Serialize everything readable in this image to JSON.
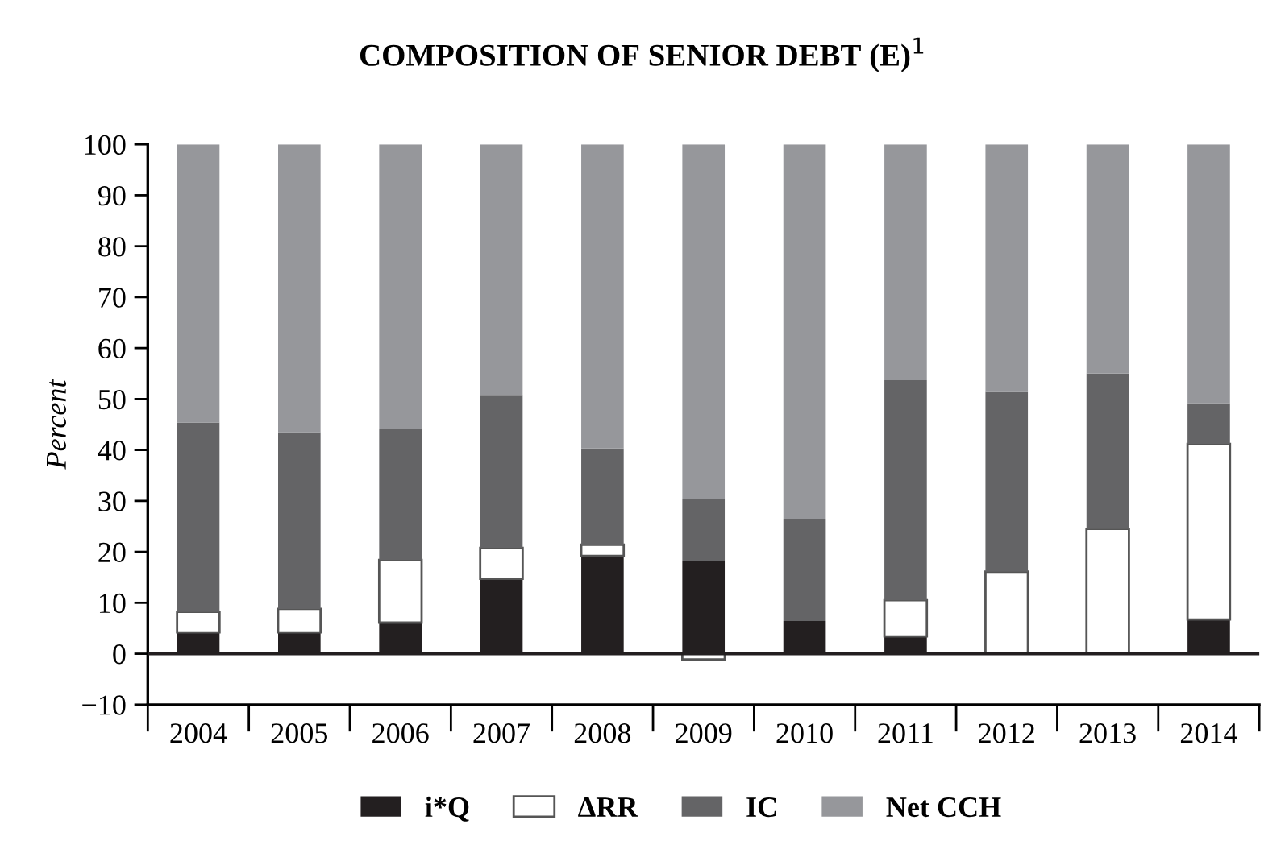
{
  "chart_data": {
    "type": "bar",
    "title": "COMPOSITION OF SENIOR DEBT (E)$^{1}$",
    "ylabel": "Percent",
    "stacked": true,
    "categories": [
      "2004",
      "2005",
      "2006",
      "2007",
      "2008",
      "2009",
      "2010",
      "2011",
      "2012",
      "2013",
      "2014"
    ],
    "series": [
      {
        "name": "i*Q",
        "color": "#231f20",
        "values": [
          4.2,
          4.2,
          6.1,
          14.7,
          19.2,
          18.2,
          6.4,
          3.4,
          null,
          null,
          6.7
        ]
      },
      {
        "name": "ΔRR",
        "color": "#ffffff",
        "values": [
          4.0,
          4.6,
          12.3,
          6.1,
          2.2,
          -1.1,
          null,
          7.1,
          16.1,
          24.5,
          34.5
        ]
      },
      {
        "name": "IC",
        "color": "#646466",
        "values": [
          37.2,
          34.7,
          25.7,
          30.0,
          18.9,
          12.2,
          20.1,
          43.2,
          35.3,
          30.5,
          8.0
        ]
      },
      {
        "name": "Net CCH",
        "color": "#96979b",
        "values": [
          54.6,
          56.5,
          55.9,
          49.2,
          59.7,
          69.6,
          73.5,
          46.3,
          48.6,
          45.0,
          50.8
        ]
      }
    ],
    "ylim": [
      -10,
      100
    ],
    "yticks": [
      -10,
      0,
      10,
      20,
      30,
      40,
      50,
      60,
      70,
      80,
      90,
      100
    ],
    "ref_lines": [
      {
        "axis": "y",
        "value": 0,
        "label": null,
        "color": "#231f20"
      }
    ],
    "grid": false,
    "legend": "bottom"
  }
}
